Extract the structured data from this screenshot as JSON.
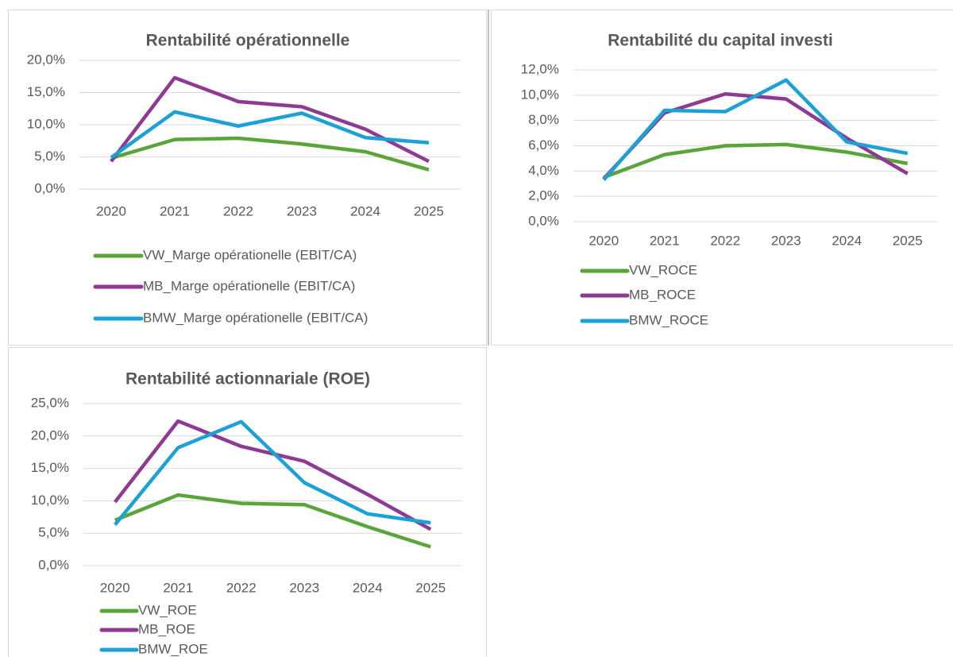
{
  "chart_data": [
    {
      "type": "line",
      "title": "Rentabilité opérationnelle",
      "categories": [
        "2020",
        "2021",
        "2022",
        "2023",
        "2024",
        "2025"
      ],
      "series": [
        {
          "name": "VW_Marge opérationelle (EBIT/CA)",
          "color": "#5aa53a",
          "values": [
            4.8,
            7.7,
            7.9,
            7.0,
            5.8,
            3.0
          ]
        },
        {
          "name": "MB_Marge opérationelle (EBIT/CA)",
          "color": "#8e3a92",
          "values": [
            4.3,
            17.3,
            13.6,
            12.8,
            9.3,
            4.3
          ]
        },
        {
          "name": "BMW_Marge opérationelle (EBIT/CA)",
          "color": "#1ba1d6",
          "values": [
            4.9,
            12.0,
            9.8,
            11.8,
            8.0,
            7.2
          ]
        }
      ],
      "ylim": [
        0,
        20
      ],
      "yticks": [
        {
          "value": 0,
          "label": "0,0%"
        },
        {
          "value": 5,
          "label": "5,0%"
        },
        {
          "value": 10,
          "label": "10,0%"
        },
        {
          "value": 15,
          "label": "15,0%"
        },
        {
          "value": 20,
          "label": "20,0%"
        }
      ],
      "grid": true,
      "legend": "bottom"
    },
    {
      "type": "line",
      "title": "Rentabilité du capital investi",
      "categories": [
        "2020",
        "2021",
        "2022",
        "2023",
        "2024",
        "2025"
      ],
      "series": [
        {
          "name": "VW_ROCE",
          "color": "#5aa53a",
          "values": [
            3.5,
            5.3,
            6.0,
            6.1,
            5.5,
            4.6
          ]
        },
        {
          "name": "MB_ROCE",
          "color": "#8e3a92",
          "values": [
            3.4,
            8.6,
            10.1,
            9.7,
            6.6,
            3.8
          ]
        },
        {
          "name": "BMW_ROCE",
          "color": "#1ba1d6",
          "values": [
            3.3,
            8.8,
            8.7,
            11.2,
            6.3,
            5.4
          ]
        }
      ],
      "ylim": [
        0,
        12
      ],
      "yticks": [
        {
          "value": 0,
          "label": "0,0%"
        },
        {
          "value": 2,
          "label": "2,0%"
        },
        {
          "value": 4,
          "label": "4,0%"
        },
        {
          "value": 6,
          "label": "6,0%"
        },
        {
          "value": 8,
          "label": "8,0%"
        },
        {
          "value": 10,
          "label": "10,0%"
        },
        {
          "value": 12,
          "label": "12,0%"
        }
      ],
      "grid": true,
      "legend": "bottom"
    },
    {
      "type": "line",
      "title": "Rentabilité actionnariale (ROE)",
      "categories": [
        "2020",
        "2021",
        "2022",
        "2023",
        "2024",
        "2025"
      ],
      "series": [
        {
          "name": "VW_ROE",
          "color": "#5aa53a",
          "values": [
            7.0,
            10.9,
            9.6,
            9.4,
            6.0,
            2.9
          ]
        },
        {
          "name": "MB_ROE",
          "color": "#8e3a92",
          "values": [
            9.8,
            22.3,
            18.4,
            16.1,
            11.0,
            5.6
          ]
        },
        {
          "name": "BMW_ROE",
          "color": "#1ba1d6",
          "values": [
            6.3,
            18.2,
            22.2,
            12.8,
            8.0,
            6.6
          ]
        }
      ],
      "ylim": [
        0,
        25
      ],
      "yticks": [
        {
          "value": 0,
          "label": "0,0%"
        },
        {
          "value": 5,
          "label": "5,0%"
        },
        {
          "value": 10,
          "label": "10,0%"
        },
        {
          "value": 15,
          "label": "15,0%"
        },
        {
          "value": 20,
          "label": "20,0%"
        },
        {
          "value": 25,
          "label": "25,0%"
        }
      ],
      "grid": true,
      "legend": "bottom"
    }
  ]
}
